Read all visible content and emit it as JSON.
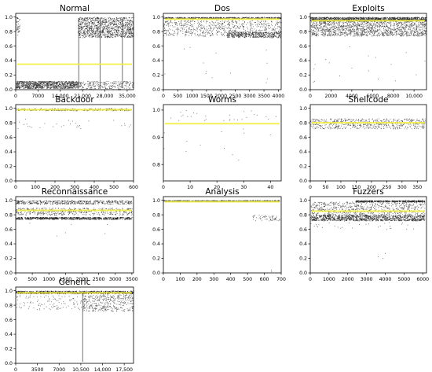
{
  "chart_data": [
    {
      "title": "Normal",
      "type": "scatter",
      "xticks": [
        "0",
        "7000",
        "14,000",
        "21,000",
        "28,000",
        "35,000"
      ],
      "xlim": [
        0,
        37000
      ],
      "yticks": [
        "0.0",
        "0.2",
        "0.4",
        "0.6",
        "0.8",
        "1.0"
      ],
      "ylim": [
        0,
        1.05
      ],
      "mean_line": 0.35,
      "clusters": [
        {
          "x": [
            0,
            19500
          ],
          "y": [
            0.02,
            0.12
          ],
          "n": 900,
          "color": "#222222"
        },
        {
          "x": [
            19500,
            37000
          ],
          "y": [
            0.72,
            1.0
          ],
          "n": 1100,
          "color": "#222222"
        },
        {
          "x": [
            19500,
            37000
          ],
          "y": [
            0.0,
            0.12
          ],
          "n": 250,
          "color": "#222222"
        },
        {
          "x": [
            0,
            1200
          ],
          "y": [
            0.75,
            1.0
          ],
          "n": 40,
          "color": "#222222"
        }
      ],
      "spikes": [
        19800,
        26500,
        33500
      ]
    },
    {
      "title": "Dos",
      "type": "scatter",
      "xticks": [
        "0",
        "500",
        "1000",
        "1500",
        "2000",
        "2500",
        "3000",
        "3500",
        "4000"
      ],
      "xlim": [
        0,
        4100
      ],
      "yticks": [
        "0.0",
        "0.2",
        "0.4",
        "0.6",
        "0.8",
        "1.0"
      ],
      "ylim": [
        0,
        1.05
      ],
      "mean_line": 0.97,
      "clusters": [
        {
          "x": [
            0,
            4100
          ],
          "y": [
            0.98,
            1.0
          ],
          "n": 500,
          "color": "#222222"
        },
        {
          "x": [
            0,
            4100
          ],
          "y": [
            0.74,
            0.96
          ],
          "n": 700,
          "color": "#333333"
        },
        {
          "x": [
            2200,
            4100
          ],
          "y": [
            0.72,
            0.8
          ],
          "n": 400,
          "color": "#222222"
        },
        {
          "x": [
            0,
            4100
          ],
          "y": [
            0.05,
            0.6
          ],
          "n": 14,
          "color": "#333333"
        }
      ],
      "spikes": []
    },
    {
      "title": "Exploits",
      "type": "scatter",
      "xticks": [
        "0",
        "2000",
        "4000",
        "6000",
        "8000",
        "10,000"
      ],
      "xlim": [
        0,
        11200
      ],
      "yticks": [
        "0.0",
        "0.2",
        "0.4",
        "0.6",
        "0.8",
        "1.0"
      ],
      "ylim": [
        0,
        1.05
      ],
      "mean_line": 0.95,
      "clusters": [
        {
          "x": [
            0,
            11200
          ],
          "y": [
            0.95,
            1.0
          ],
          "n": 1300,
          "color": "#222222"
        },
        {
          "x": [
            0,
            11200
          ],
          "y": [
            0.74,
            0.95
          ],
          "n": 1500,
          "color": "#333333"
        },
        {
          "x": [
            0,
            11200
          ],
          "y": [
            0.05,
            0.6
          ],
          "n": 18,
          "color": "#333333"
        }
      ],
      "spikes": []
    },
    {
      "title": "Backdoor",
      "type": "scatter",
      "xticks": [
        "0",
        "100",
        "200",
        "300",
        "400",
        "500",
        "600"
      ],
      "xlim": [
        0,
        600
      ],
      "yticks": [
        "0.0",
        "0.2",
        "0.4",
        "0.6",
        "0.8",
        "1.0"
      ],
      "ylim": [
        0,
        1.05
      ],
      "mean_line": 0.98,
      "clusters": [
        {
          "x": [
            0,
            590
          ],
          "y": [
            0.97,
            1.0
          ],
          "n": 300,
          "color": "#222222"
        },
        {
          "x": [
            0,
            590
          ],
          "y": [
            0.72,
            0.86
          ],
          "n": 30,
          "color": "#333333"
        }
      ],
      "spikes": []
    },
    {
      "title": "Worms",
      "type": "scatter",
      "xticks": [
        "0",
        "10",
        "20",
        "30",
        "40"
      ],
      "xlim": [
        0,
        44
      ],
      "yticks": [
        "0.8",
        "0.9",
        "1.0"
      ],
      "ylim": [
        0.74,
        1.02
      ],
      "mean_line": 0.95,
      "clusters": [
        {
          "x": [
            0,
            43
          ],
          "y": [
            0.96,
            1.0
          ],
          "n": 28,
          "color": "#333333"
        },
        {
          "x": [
            0,
            43
          ],
          "y": [
            0.78,
            0.94
          ],
          "n": 12,
          "color": "#333333"
        }
      ],
      "spikes": []
    },
    {
      "title": "Shellcode",
      "type": "scatter",
      "xticks": [
        "0",
        "50",
        "100",
        "150",
        "200",
        "250",
        "300",
        "350"
      ],
      "xlim": [
        0,
        380
      ],
      "yticks": [
        "0.0",
        "0.2",
        "0.4",
        "0.6",
        "0.8",
        "1.0"
      ],
      "ylim": [
        0,
        1.05
      ],
      "mean_line": 0.8,
      "clusters": [
        {
          "x": [
            0,
            375
          ],
          "y": [
            0.72,
            0.86
          ],
          "n": 600,
          "color": "#333333"
        }
      ],
      "spikes": []
    },
    {
      "title": "Reconnaissance",
      "type": "scatter",
      "xticks": [
        "0",
        "500",
        "1000",
        "1500",
        "2000",
        "2500",
        "3000",
        "3500"
      ],
      "xlim": [
        0,
        3550
      ],
      "yticks": [
        "0.0",
        "0.2",
        "0.4",
        "0.6",
        "0.8",
        "1.0"
      ],
      "ylim": [
        0,
        1.05
      ],
      "mean_line": 0.86,
      "clusters": [
        {
          "x": [
            0,
            3500
          ],
          "y": [
            0.95,
            1.0
          ],
          "n": 500,
          "color": "#222222"
        },
        {
          "x": [
            0,
            3500
          ],
          "y": [
            0.8,
            0.9
          ],
          "n": 500,
          "color": "#333333"
        },
        {
          "x": [
            0,
            3500
          ],
          "y": [
            0.74,
            0.77
          ],
          "n": 700,
          "color": "#111111"
        },
        {
          "x": [
            0,
            3500
          ],
          "y": [
            0.5,
            0.7
          ],
          "n": 6,
          "color": "#333333"
        }
      ],
      "spikes": []
    },
    {
      "title": "Analysis",
      "type": "scatter",
      "xticks": [
        "0",
        "100",
        "200",
        "300",
        "400",
        "500",
        "600",
        "700"
      ],
      "xlim": [
        0,
        700
      ],
      "yticks": [
        "0.0",
        "0.2",
        "0.4",
        "0.6",
        "0.8",
        "1.0"
      ],
      "ylim": [
        0,
        1.05
      ],
      "mean_line": 0.98,
      "clusters": [
        {
          "x": [
            0,
            690
          ],
          "y": [
            0.99,
            1.0
          ],
          "n": 500,
          "color": "#111111"
        },
        {
          "x": [
            530,
            690
          ],
          "y": [
            0.72,
            0.8
          ],
          "n": 60,
          "color": "#333333"
        },
        {
          "x": [
            640,
            660
          ],
          "y": [
            0.02,
            0.06
          ],
          "n": 2,
          "color": "#333333"
        }
      ],
      "spikes": []
    },
    {
      "title": "Fuzzers",
      "type": "scatter",
      "xticks": [
        "0",
        "1000",
        "2000",
        "3000",
        "4000",
        "5000",
        "6000"
      ],
      "xlim": [
        0,
        6200
      ],
      "yticks": [
        "0.0",
        "0.2",
        "0.4",
        "0.6",
        "0.8",
        "1.0"
      ],
      "ylim": [
        0,
        1.05
      ],
      "mean_line": 0.85,
      "clusters": [
        {
          "x": [
            2400,
            6100
          ],
          "y": [
            0.98,
            1.0
          ],
          "n": 400,
          "color": "#111111"
        },
        {
          "x": [
            0,
            6100
          ],
          "y": [
            0.8,
            0.98
          ],
          "n": 700,
          "color": "#333333"
        },
        {
          "x": [
            0,
            6100
          ],
          "y": [
            0.72,
            0.8
          ],
          "n": 1000,
          "color": "#111111"
        },
        {
          "x": [
            0,
            6100
          ],
          "y": [
            0.6,
            0.7
          ],
          "n": 30,
          "color": "#333333"
        },
        {
          "x": [
            3500,
            4200
          ],
          "y": [
            0.2,
            0.3
          ],
          "n": 3,
          "color": "#333333"
        }
      ],
      "spikes": []
    },
    {
      "title": "Generic",
      "type": "scatter",
      "xticks": [
        "0",
        "3500",
        "7000",
        "10,500",
        "14,000",
        "17,500"
      ],
      "xlim": [
        0,
        19000
      ],
      "yticks": [
        "0.0",
        "0.2",
        "0.4",
        "0.6",
        "0.8",
        "1.0"
      ],
      "ylim": [
        0,
        1.05
      ],
      "mean_line": 0.97,
      "clusters": [
        {
          "x": [
            0,
            19000
          ],
          "y": [
            0.96,
            1.0
          ],
          "n": 800,
          "color": "#111111"
        },
        {
          "x": [
            10800,
            19000
          ],
          "y": [
            0.72,
            0.95
          ],
          "n": 400,
          "color": "#333333"
        },
        {
          "x": [
            0,
            10800
          ],
          "y": [
            0.74,
            0.94
          ],
          "n": 120,
          "color": "#333333"
        }
      ],
      "spikes": [
        10800
      ]
    }
  ]
}
